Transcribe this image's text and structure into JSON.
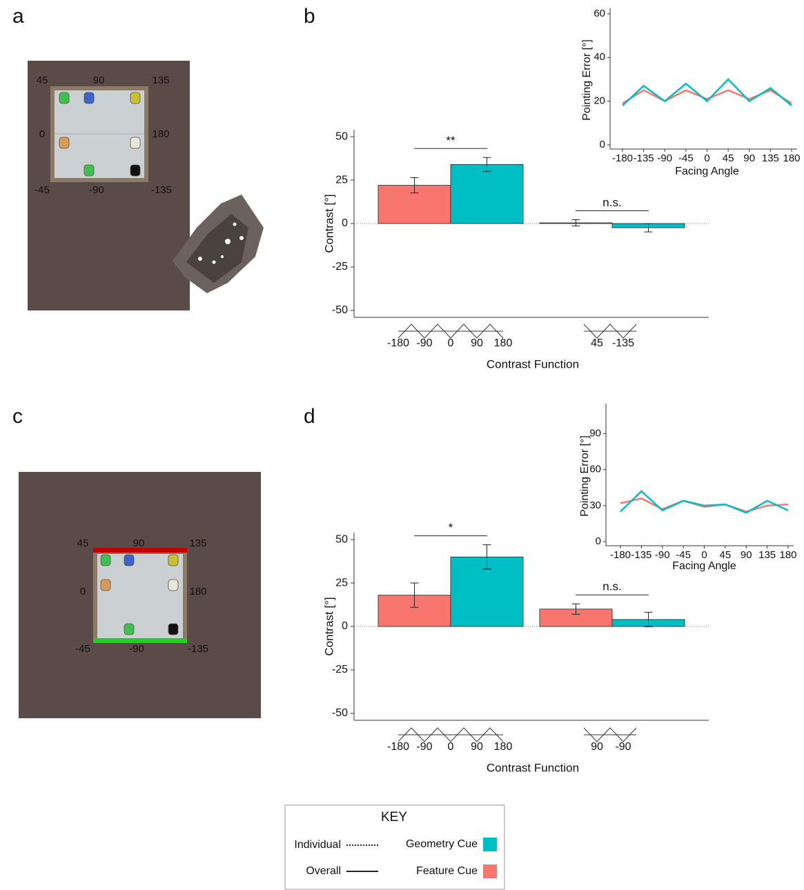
{
  "panel_labels": [
    "a",
    "b",
    "c",
    "d"
  ],
  "scenes": [
    {
      "angle_labels": [
        "45",
        "90",
        "135",
        "0",
        "180",
        "-45",
        "-90",
        "-135"
      ]
    },
    {
      "angle_labels": [
        "45",
        "90",
        "135",
        "0",
        "180",
        "-45",
        "-90",
        "-135"
      ]
    }
  ],
  "chart_data": [
    {
      "type": "bar",
      "ylabel": "Contrast [°]",
      "xlabel": "Contrast Function",
      "categories": [
        [
          "-180",
          "-90",
          "0",
          "90",
          "180"
        ],
        [
          "45",
          "-135"
        ]
      ],
      "series": [
        {
          "name": "Feature Cue",
          "color": "#f8766d",
          "values": [
            22,
            0.4
          ],
          "errors": [
            4.4,
            1.8
          ]
        },
        {
          "name": "Geometry Cue",
          "color": "#00bfc4",
          "values": [
            34,
            -2.4
          ],
          "errors": [
            4,
            2.4
          ]
        }
      ],
      "significance": [
        "**",
        "n.s."
      ],
      "ylim": [
        -54,
        54
      ],
      "yticks": [
        -50,
        -25,
        0,
        25,
        50
      ]
    },
    {
      "type": "line",
      "ylabel": "Pointing Error [°]",
      "xlabel": "Facing Angle",
      "x": [
        -180,
        -135,
        -90,
        -45,
        0,
        45,
        90,
        135,
        180
      ],
      "series": [
        {
          "name": "Feature Cue",
          "color": "#f8766d",
          "values": [
            19,
            25,
            20,
            25,
            21,
            25,
            21,
            25,
            19
          ]
        },
        {
          "name": "Geometry Cue",
          "color": "#00bfc4",
          "values": [
            18,
            27,
            20,
            28,
            20,
            30,
            20,
            26,
            18
          ]
        }
      ],
      "xlim": [
        -180,
        180
      ],
      "xticks": [
        -180,
        -135,
        -90,
        -45,
        0,
        45,
        90,
        135,
        180
      ],
      "ylim": [
        0,
        62.5
      ],
      "yticks": [
        0,
        20,
        40,
        60
      ]
    },
    {
      "type": "bar",
      "ylabel": "Contrast [°]",
      "xlabel": "Contrast Function",
      "categories": [
        [
          "-180",
          "-90",
          "0",
          "90",
          "180"
        ],
        [
          "90",
          "-90"
        ]
      ],
      "series": [
        {
          "name": "Feature Cue",
          "color": "#f8766d",
          "values": [
            18,
            10
          ],
          "errors": [
            7,
            3
          ]
        },
        {
          "name": "Geometry Cue",
          "color": "#00bfc4",
          "values": [
            40,
            4
          ],
          "errors": [
            7,
            4.2
          ]
        }
      ],
      "significance": [
        "*",
        "n.s."
      ],
      "ylim": [
        -54,
        54
      ],
      "yticks": [
        -50,
        -25,
        0,
        25,
        50
      ]
    },
    {
      "type": "line",
      "ylabel": "Pointing Error [°]",
      "xlabel": "Facing Angle",
      "x": [
        -180,
        -135,
        -90,
        -45,
        0,
        45,
        90,
        135,
        180
      ],
      "series": [
        {
          "name": "Feature Cue",
          "color": "#f8766d",
          "values": [
            32,
            36,
            27,
            34,
            29,
            31,
            25,
            30,
            31
          ]
        },
        {
          "name": "Geometry Cue",
          "color": "#00bfc4",
          "values": [
            25,
            42,
            26,
            34,
            30,
            31,
            24,
            34,
            26
          ]
        }
      ],
      "xlim": [
        -180,
        180
      ],
      "xticks": [
        -180,
        -135,
        -90,
        -45,
        0,
        45,
        90,
        135,
        180
      ],
      "ylim": [
        0,
        115
      ],
      "yticks": [
        0,
        30,
        60,
        90
      ]
    }
  ],
  "key": {
    "title": "KEY",
    "line_types": [
      "Individual",
      "Overall"
    ],
    "cues": [
      {
        "name": "Geometry Cue",
        "color": "#00bfc4"
      },
      {
        "name": "Feature Cue",
        "color": "#f8766d"
      }
    ]
  }
}
